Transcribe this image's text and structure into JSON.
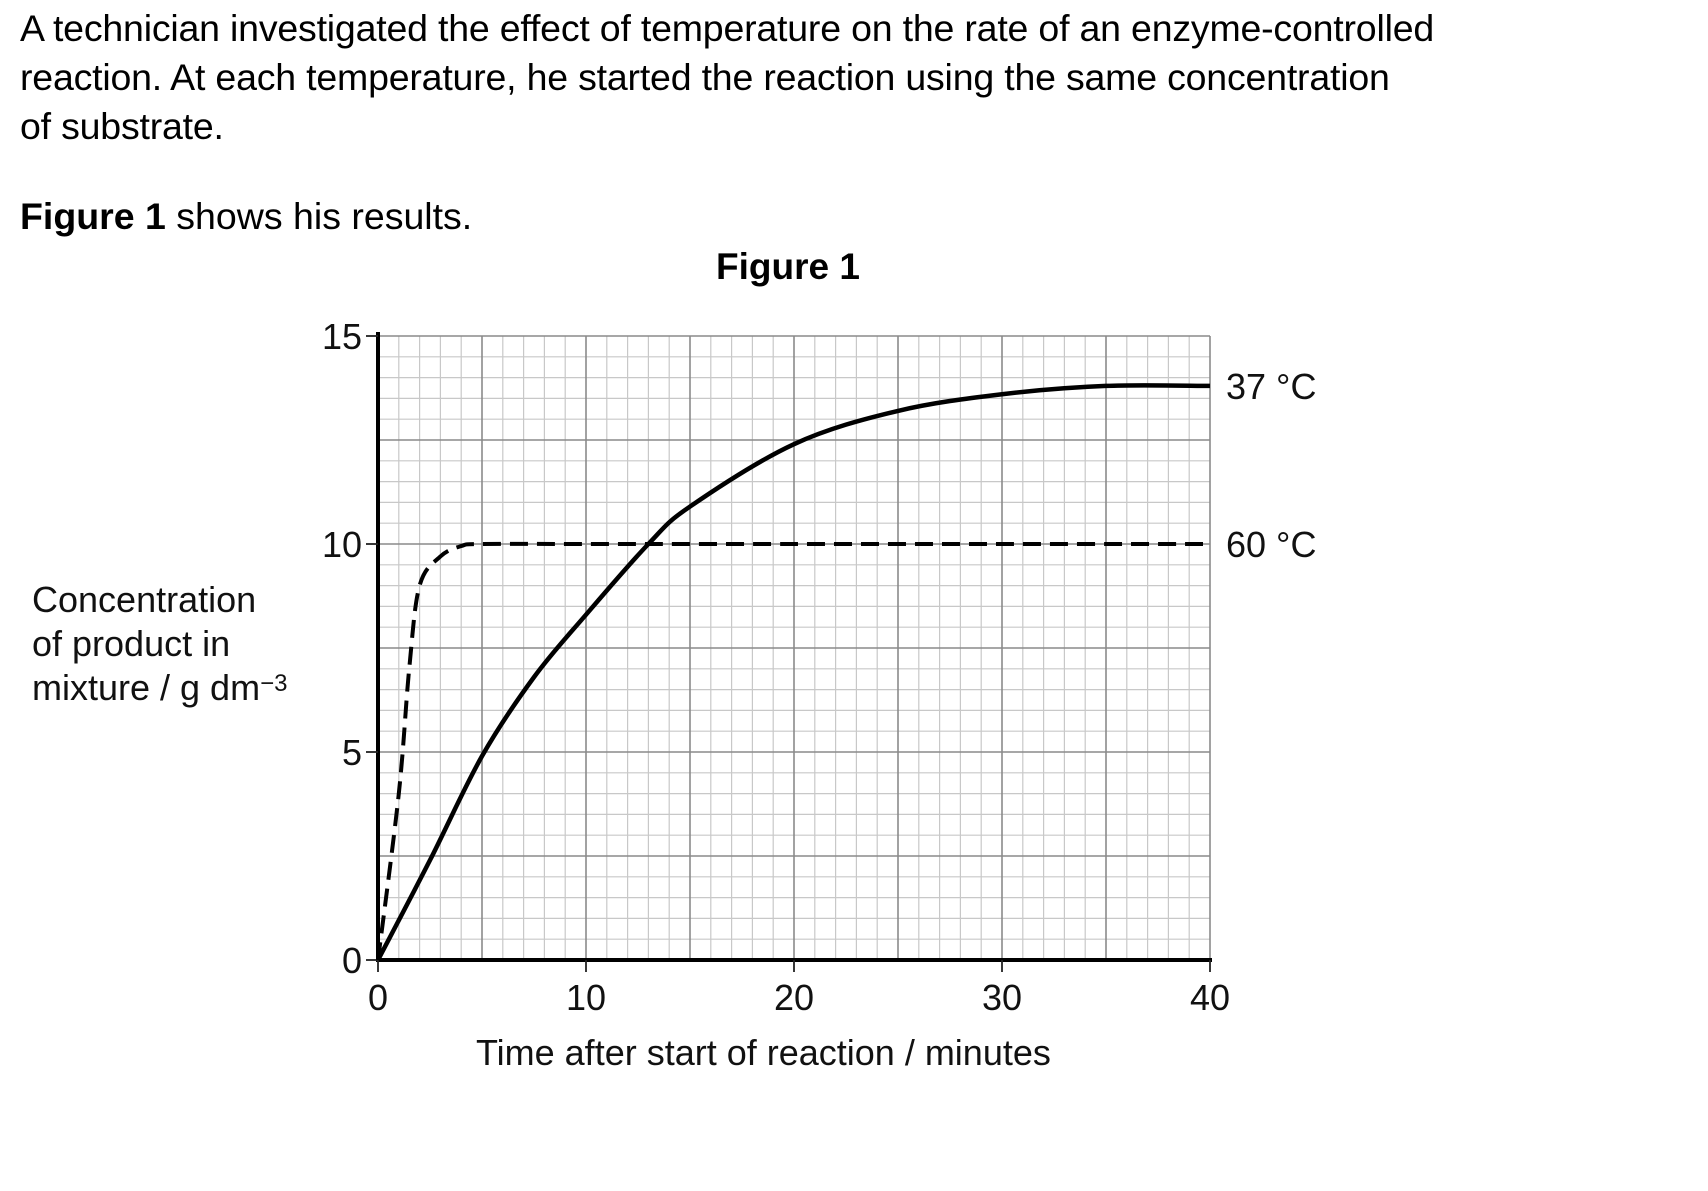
{
  "intro": {
    "line1": "A technician investigated the effect of temperature on the rate of an enzyme-controlled",
    "line2": "reaction.  At each temperature, he started the reaction using the same concentration",
    "line3": "of substrate."
  },
  "caption": {
    "bold": "Figure 1",
    "rest": " shows his results."
  },
  "chart_data": {
    "type": "line",
    "title": "Figure 1",
    "xlabel": "Time after start of reaction / minutes",
    "ylabel": "Concentration of product in mixture / g dm−3",
    "ylabel_lines": [
      "Concentration",
      "of product in",
      "mixture / g dm"
    ],
    "ylabel_sup": "−3",
    "xlim": [
      0,
      40
    ],
    "ylim": [
      0,
      15
    ],
    "x_ticks": [
      "0",
      "10",
      "20",
      "30",
      "40"
    ],
    "y_ticks": [
      "0",
      "5",
      "10",
      "15"
    ],
    "grid": true,
    "legend_position": "right (inline labels)",
    "series": [
      {
        "name": "37 °C",
        "style": "solid",
        "x": [
          0,
          2.5,
          5,
          7.5,
          10,
          13,
          15,
          20,
          25,
          30,
          35,
          40
        ],
        "values": [
          0,
          2.4,
          4.9,
          6.8,
          8.3,
          10.0,
          10.9,
          12.4,
          13.2,
          13.6,
          13.8,
          13.8
        ]
      },
      {
        "name": "60 °C",
        "style": "dashed",
        "x": [
          0,
          1,
          1.5,
          2,
          3,
          4,
          5,
          10,
          20,
          30,
          40
        ],
        "values": [
          0,
          4.0,
          7.0,
          9.0,
          9.7,
          9.95,
          10.0,
          10.0,
          10.0,
          10.0,
          10.0
        ]
      }
    ]
  }
}
